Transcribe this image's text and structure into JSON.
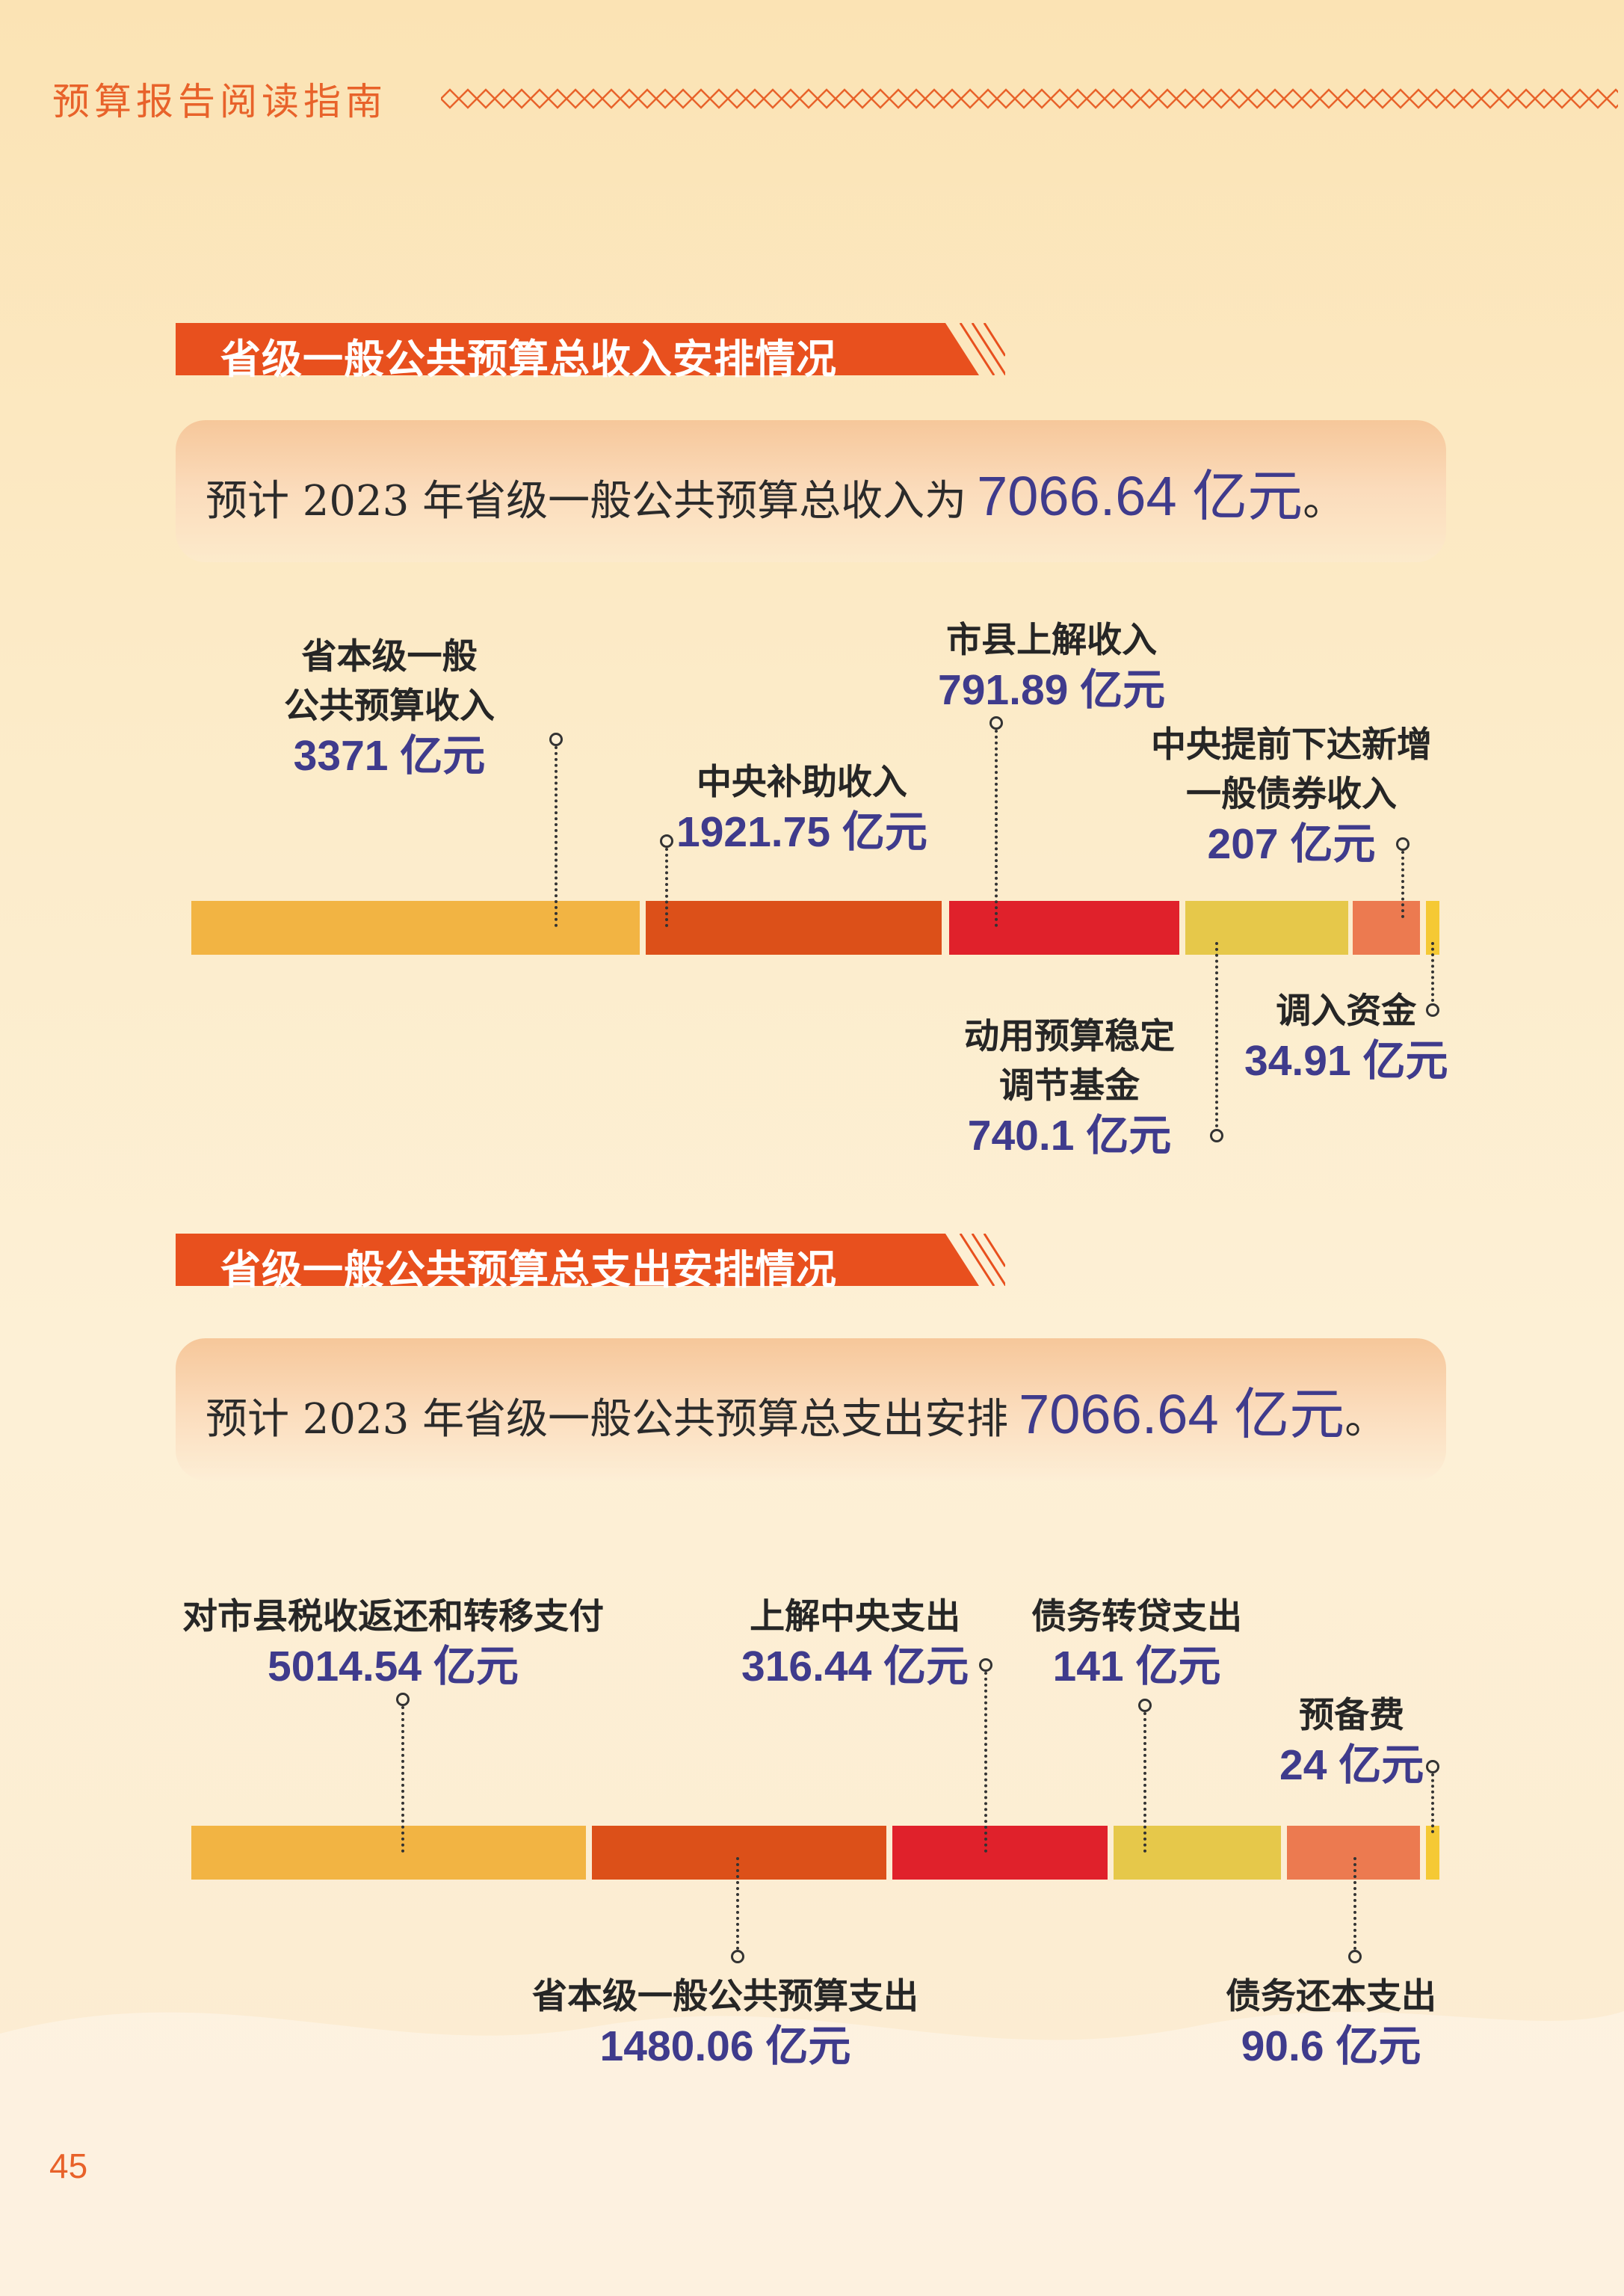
{
  "header": {
    "guide_title": "预算报告阅读指南",
    "page_number": "45"
  },
  "colors": {
    "accent": "#e8622a",
    "value_text": "#3f3b8c",
    "seg_orange_light": "#f2b443",
    "seg_orange_dark": "#dc5019",
    "seg_red": "#e0212b",
    "seg_yellow": "#e6c84a",
    "seg_salmon": "#ec7a50",
    "seg_gold": "#f5c934"
  },
  "income": {
    "section_title": "省级一般公共预算总收入安排情况",
    "summary_prefix": "预计 2023 年省级一般公共预算总收入为",
    "summary_amount": "7066.64 亿元",
    "summary_suffix": "。",
    "items": [
      {
        "label_lines": [
          "省本级一般",
          "公共预算收入"
        ],
        "value": "3371 亿元",
        "amount": 3371
      },
      {
        "label_lines": [
          "中央补助收入"
        ],
        "value": "1921.75 亿元",
        "amount": 1921.75
      },
      {
        "label_lines": [
          "市县上解收入"
        ],
        "value": "791.89 亿元",
        "amount": 791.89
      },
      {
        "label_lines": [
          "动用预算稳定",
          "调节基金"
        ],
        "value": "740.1 亿元",
        "amount": 740.1
      },
      {
        "label_lines": [
          "中央提前下达新增",
          "一般债券收入"
        ],
        "value": "207 亿元",
        "amount": 207
      },
      {
        "label_lines": [
          "调入资金"
        ],
        "value": "34.91 亿元",
        "amount": 34.91
      }
    ]
  },
  "expenditure": {
    "section_title": "省级一般公共预算总支出安排情况",
    "summary_prefix": "预计 2023 年省级一般公共预算总支出安排",
    "summary_amount": "7066.64 亿元",
    "summary_suffix": "。",
    "items": [
      {
        "label_lines": [
          "对市县税收返还和转移支付"
        ],
        "value": "5014.54 亿元",
        "amount": 5014.54
      },
      {
        "label_lines": [
          "省本级一般公共预算支出"
        ],
        "value": "1480.06 亿元",
        "amount": 1480.06
      },
      {
        "label_lines": [
          "上解中央支出"
        ],
        "value": "316.44 亿元",
        "amount": 316.44
      },
      {
        "label_lines": [
          "债务转贷支出"
        ],
        "value": "141 亿元",
        "amount": 141
      },
      {
        "label_lines": [
          "债务还本支出"
        ],
        "value": "90.6 亿元",
        "amount": 90.6
      },
      {
        "label_lines": [
          "预备费"
        ],
        "value": "24 亿元",
        "amount": 24
      }
    ]
  }
}
